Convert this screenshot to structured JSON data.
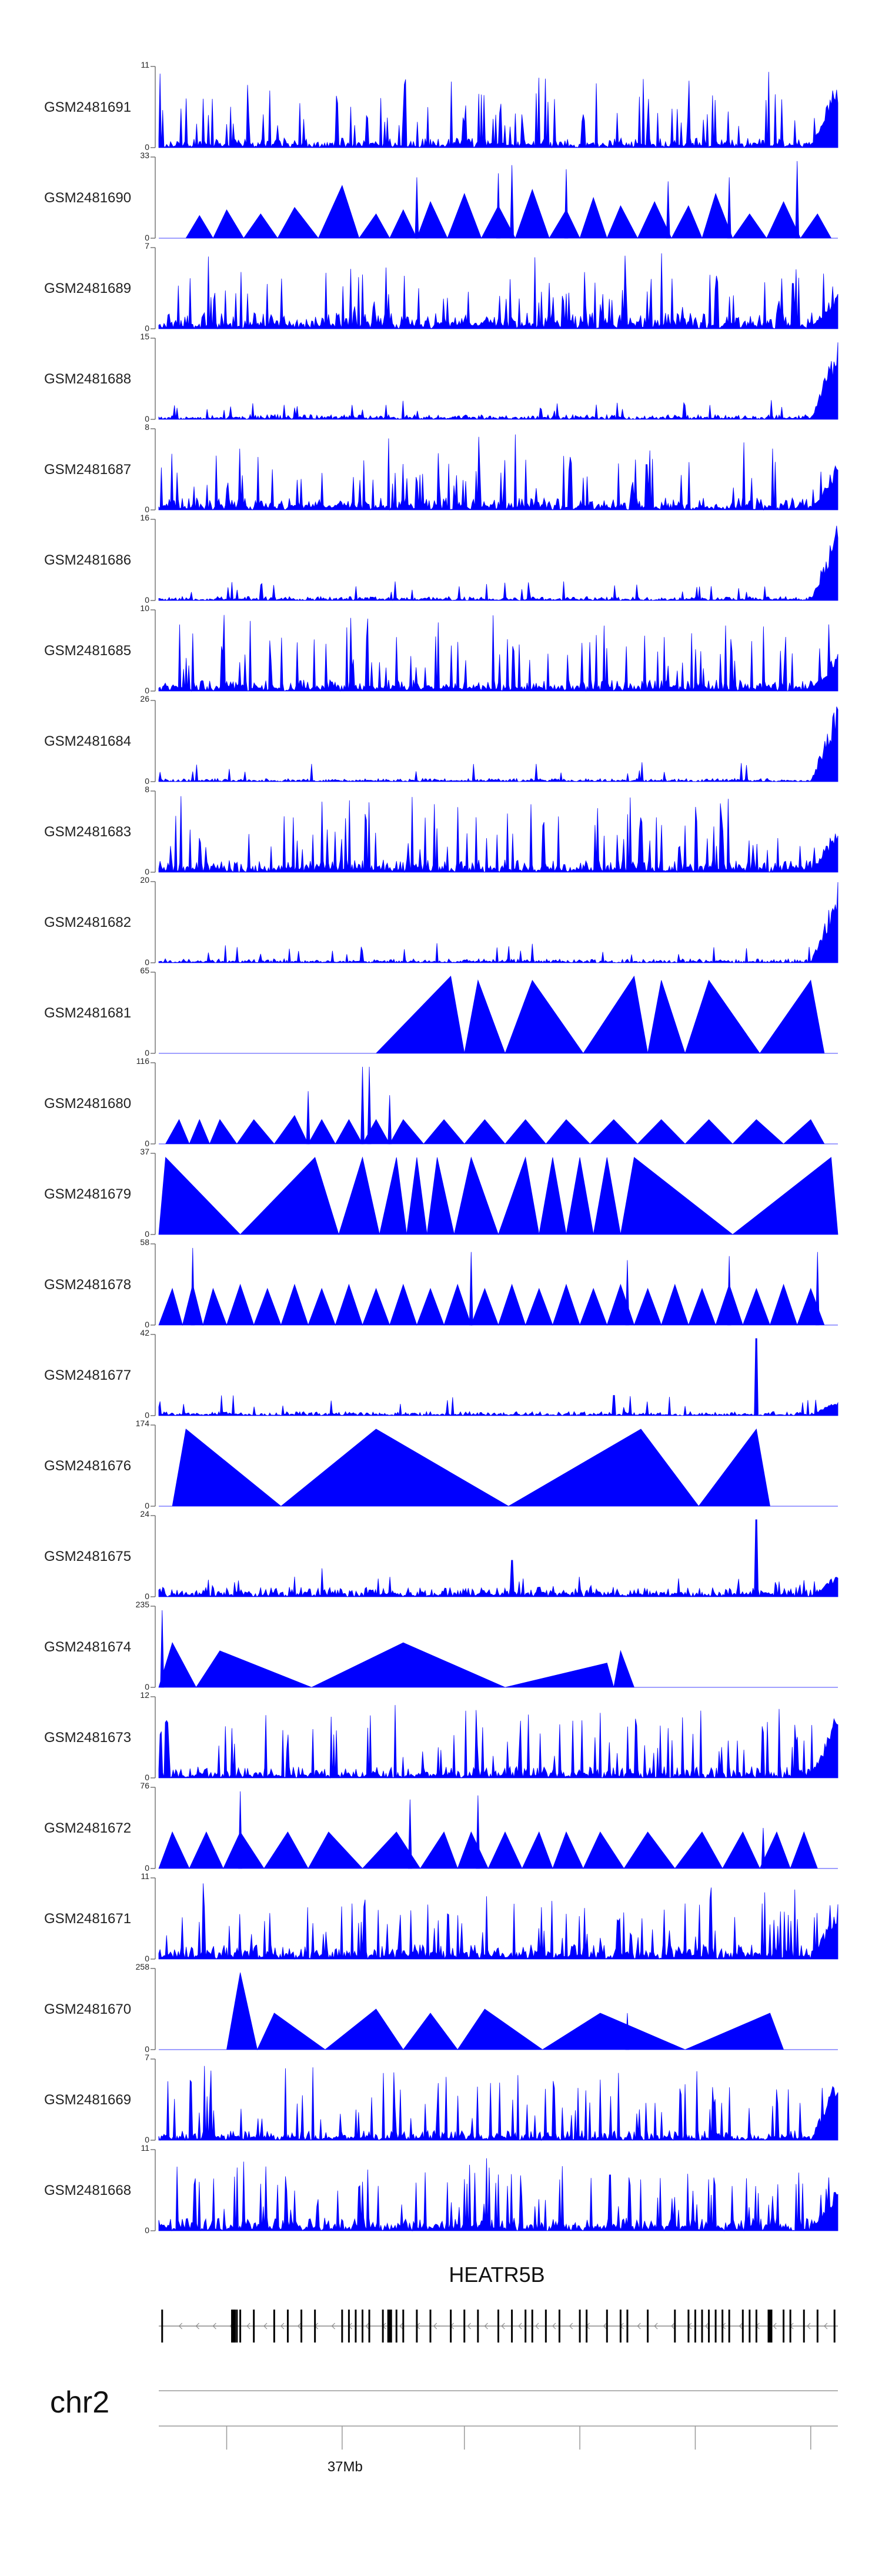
{
  "chart_data": {
    "type": "area",
    "title": "",
    "fill_color": "#0000ff",
    "tracks": [
      {
        "name": "GSM2481691",
        "ymax": 11,
        "ymin": 0,
        "style": "dense",
        "seed": 11,
        "base": 0.12,
        "tail": 0.9
      },
      {
        "name": "GSM2481690",
        "ymax": 33,
        "ymin": 0,
        "style": "tri",
        "peaks": [
          [
            0.06,
            0.28
          ],
          [
            0.1,
            0.35
          ],
          [
            0.15,
            0.3
          ],
          [
            0.2,
            0.38
          ],
          [
            0.27,
            0.65
          ],
          [
            0.32,
            0.3
          ],
          [
            0.36,
            0.35
          ],
          [
            0.4,
            0.45
          ],
          [
            0.45,
            0.55
          ],
          [
            0.5,
            0.4
          ],
          [
            0.55,
            0.6
          ],
          [
            0.6,
            0.35
          ],
          [
            0.64,
            0.5
          ],
          [
            0.68,
            0.4
          ],
          [
            0.73,
            0.45
          ],
          [
            0.78,
            0.4
          ],
          [
            0.82,
            0.55
          ],
          [
            0.87,
            0.3
          ],
          [
            0.92,
            0.45
          ],
          [
            0.97,
            0.3
          ]
        ],
        "spikes": [
          [
            0.38,
            0.75
          ],
          [
            0.5,
            0.8
          ],
          [
            0.52,
            0.9
          ],
          [
            0.6,
            0.85
          ],
          [
            0.75,
            0.7
          ],
          [
            0.84,
            0.75
          ],
          [
            0.94,
            0.95
          ]
        ]
      },
      {
        "name": "GSM2481689",
        "ymax": 7,
        "ymin": 0,
        "style": "dense",
        "seed": 89,
        "base": 0.2,
        "tail": 0.5
      },
      {
        "name": "GSM2481688",
        "ymax": 15,
        "ymin": 0,
        "style": "low",
        "seed": 88,
        "base": 0.06,
        "tail": 1.0
      },
      {
        "name": "GSM2481687",
        "ymax": 8,
        "ymin": 0,
        "style": "dense",
        "seed": 87,
        "base": 0.15,
        "tail": 0.6
      },
      {
        "name": "GSM2481686",
        "ymax": 16,
        "ymin": 0,
        "style": "low",
        "seed": 86,
        "base": 0.05,
        "tail": 1.0
      },
      {
        "name": "GSM2481685",
        "ymax": 10,
        "ymin": 0,
        "style": "dense",
        "seed": 85,
        "base": 0.14,
        "tail": 0.5
      },
      {
        "name": "GSM2481684",
        "ymax": 26,
        "ymin": 0,
        "style": "low",
        "seed": 84,
        "base": 0.04,
        "tail": 1.0
      },
      {
        "name": "GSM2481683",
        "ymax": 8,
        "ymin": 0,
        "style": "dense",
        "seed": 83,
        "base": 0.16,
        "tail": 0.6
      },
      {
        "name": "GSM2481682",
        "ymax": 20,
        "ymin": 0,
        "style": "low",
        "seed": 82,
        "base": 0.05,
        "tail": 1.0
      },
      {
        "name": "GSM2481681",
        "ymax": 65,
        "ymin": 0,
        "style": "tri",
        "peaks": [
          [
            0.21,
            0.0
          ],
          [
            0.43,
            0.95
          ],
          [
            0.47,
            0.9
          ],
          [
            0.55,
            0.9
          ],
          [
            0.7,
            0.95
          ],
          [
            0.74,
            0.9
          ],
          [
            0.81,
            0.9
          ],
          [
            0.96,
            0.9
          ]
        ],
        "spikes": []
      },
      {
        "name": "GSM2481680",
        "ymax": 116,
        "ymin": 0,
        "style": "tri",
        "peaks": [
          [
            0.03,
            0.3
          ],
          [
            0.06,
            0.3
          ],
          [
            0.09,
            0.3
          ],
          [
            0.14,
            0.3
          ],
          [
            0.2,
            0.35
          ],
          [
            0.24,
            0.3
          ],
          [
            0.28,
            0.3
          ],
          [
            0.32,
            0.3
          ],
          [
            0.36,
            0.3
          ],
          [
            0.42,
            0.3
          ],
          [
            0.48,
            0.3
          ],
          [
            0.54,
            0.3
          ],
          [
            0.6,
            0.3
          ],
          [
            0.67,
            0.3
          ],
          [
            0.74,
            0.3
          ],
          [
            0.81,
            0.3
          ],
          [
            0.88,
            0.3
          ],
          [
            0.96,
            0.3
          ]
        ],
        "spikes": [
          [
            0.22,
            0.65
          ],
          [
            0.3,
            0.95
          ],
          [
            0.31,
            0.95
          ],
          [
            0.34,
            0.6
          ]
        ]
      },
      {
        "name": "GSM2481679",
        "ymax": 37,
        "ymin": 0,
        "style": "tri",
        "peaks": [
          [
            0.01,
            0.95
          ],
          [
            0.23,
            0.95
          ],
          [
            0.3,
            0.95
          ],
          [
            0.35,
            0.95
          ],
          [
            0.38,
            0.95
          ],
          [
            0.41,
            0.95
          ],
          [
            0.46,
            0.95
          ],
          [
            0.54,
            0.95
          ],
          [
            0.58,
            0.95
          ],
          [
            0.62,
            0.95
          ],
          [
            0.66,
            0.95
          ],
          [
            0.7,
            0.95
          ],
          [
            0.99,
            0.95
          ]
        ],
        "spikes": []
      },
      {
        "name": "GSM2481678",
        "ymax": 58,
        "ymin": 0,
        "style": "tri",
        "peaks": [
          [
            0.02,
            0.45
          ],
          [
            0.05,
            0.5
          ],
          [
            0.08,
            0.45
          ],
          [
            0.12,
            0.5
          ],
          [
            0.16,
            0.45
          ],
          [
            0.2,
            0.5
          ],
          [
            0.24,
            0.45
          ],
          [
            0.28,
            0.5
          ],
          [
            0.32,
            0.45
          ],
          [
            0.36,
            0.5
          ],
          [
            0.4,
            0.45
          ],
          [
            0.44,
            0.5
          ],
          [
            0.48,
            0.45
          ],
          [
            0.52,
            0.5
          ],
          [
            0.56,
            0.45
          ],
          [
            0.6,
            0.5
          ],
          [
            0.64,
            0.45
          ],
          [
            0.68,
            0.5
          ],
          [
            0.72,
            0.45
          ],
          [
            0.76,
            0.5
          ],
          [
            0.8,
            0.45
          ],
          [
            0.84,
            0.5
          ],
          [
            0.88,
            0.45
          ],
          [
            0.92,
            0.5
          ],
          [
            0.96,
            0.45
          ]
        ],
        "spikes": [
          [
            0.05,
            0.95
          ],
          [
            0.46,
            0.9
          ],
          [
            0.69,
            0.8
          ],
          [
            0.84,
            0.85
          ],
          [
            0.97,
            0.9
          ]
        ]
      },
      {
        "name": "GSM2481677",
        "ymax": 42,
        "ymin": 0,
        "style": "low",
        "seed": 77,
        "base": 0.05,
        "tail": 0.2,
        "extra": [
          [
            0.88,
            0.95
          ],
          [
            0.67,
            0.25
          ]
        ]
      },
      {
        "name": "GSM2481676",
        "ymax": 174,
        "ymin": 0,
        "style": "tri",
        "peaks": [
          [
            0.04,
            0.95
          ],
          [
            0.32,
            0.95
          ],
          [
            0.71,
            0.95
          ],
          [
            0.88,
            0.95
          ]
        ],
        "spikes": []
      },
      {
        "name": "GSM2481675",
        "ymax": 24,
        "ymin": 0,
        "style": "low",
        "seed": 75,
        "base": 0.12,
        "tail": 0.3,
        "extra": [
          [
            0.88,
            0.95
          ],
          [
            0.24,
            0.35
          ],
          [
            0.52,
            0.45
          ]
        ]
      },
      {
        "name": "GSM2481674",
        "ymax": 235,
        "ymin": 0,
        "style": "tri",
        "peaks": [
          [
            0.02,
            0.55
          ],
          [
            0.09,
            0.45
          ],
          [
            0.36,
            0.55
          ],
          [
            0.68,
            0.45
          ],
          [
            0.66,
            0.3
          ]
        ],
        "spikes": [
          [
            0.005,
            0.95
          ]
        ]
      },
      {
        "name": "GSM2481673",
        "ymax": 12,
        "ymin": 0,
        "style": "dense",
        "seed": 73,
        "base": 0.14,
        "tail": 0.9
      },
      {
        "name": "GSM2481672",
        "ymax": 76,
        "ymin": 0,
        "style": "tri",
        "peaks": [
          [
            0.02,
            0.45
          ],
          [
            0.07,
            0.45
          ],
          [
            0.12,
            0.45
          ],
          [
            0.19,
            0.45
          ],
          [
            0.25,
            0.45
          ],
          [
            0.35,
            0.45
          ],
          [
            0.42,
            0.45
          ],
          [
            0.46,
            0.45
          ],
          [
            0.51,
            0.45
          ],
          [
            0.56,
            0.45
          ],
          [
            0.6,
            0.45
          ],
          [
            0.65,
            0.45
          ],
          [
            0.72,
            0.45
          ],
          [
            0.8,
            0.45
          ],
          [
            0.86,
            0.45
          ],
          [
            0.91,
            0.45
          ],
          [
            0.95,
            0.45
          ]
        ],
        "spikes": [
          [
            0.12,
            0.95
          ],
          [
            0.37,
            0.85
          ],
          [
            0.47,
            0.9
          ],
          [
            0.89,
            0.5
          ]
        ]
      },
      {
        "name": "GSM2481671",
        "ymax": 11,
        "ymin": 0,
        "style": "dense",
        "seed": 71,
        "base": 0.18,
        "tail": 0.7
      },
      {
        "name": "GSM2481670",
        "ymax": 258,
        "ymin": 0,
        "style": "tri",
        "peaks": [
          [
            0.12,
            0.95
          ],
          [
            0.17,
            0.45
          ],
          [
            0.32,
            0.5
          ],
          [
            0.4,
            0.45
          ],
          [
            0.48,
            0.5
          ],
          [
            0.65,
            0.45
          ],
          [
            0.9,
            0.45
          ]
        ],
        "spikes": [
          [
            0.69,
            0.45
          ]
        ]
      },
      {
        "name": "GSM2481669",
        "ymax": 7,
        "ymin": 0,
        "style": "dense",
        "seed": 69,
        "base": 0.12,
        "tail": 0.9
      },
      {
        "name": "GSM2481668",
        "ymax": 11,
        "ymin": 0,
        "style": "dense",
        "seed": 68,
        "base": 0.16,
        "tail": 0.6
      }
    ],
    "gene": {
      "name": "HEATR5B",
      "strand": "-",
      "exons": [
        0.005,
        0.115,
        0.12,
        0.14,
        0.17,
        0.19,
        0.21,
        0.23,
        0.27,
        0.28,
        0.29,
        0.3,
        0.31,
        0.33,
        0.34,
        0.35,
        0.36,
        0.38,
        0.4,
        0.43,
        0.45,
        0.47,
        0.5,
        0.52,
        0.54,
        0.55,
        0.57,
        0.59,
        0.62,
        0.63,
        0.66,
        0.68,
        0.69,
        0.72,
        0.76,
        0.78,
        0.79,
        0.8,
        0.81,
        0.82,
        0.83,
        0.84,
        0.86,
        0.87,
        0.88,
        0.9,
        0.92,
        0.93,
        0.95,
        0.97,
        0.995
      ],
      "wide_exons": [
        0.11,
        0.34,
        0.9
      ]
    },
    "axis": {
      "chromosome": "chr2",
      "tick_label": "37Mb",
      "tick_positions": [
        0.1,
        0.27,
        0.45,
        0.62,
        0.79,
        0.96
      ],
      "labeled_tick": 1
    }
  }
}
